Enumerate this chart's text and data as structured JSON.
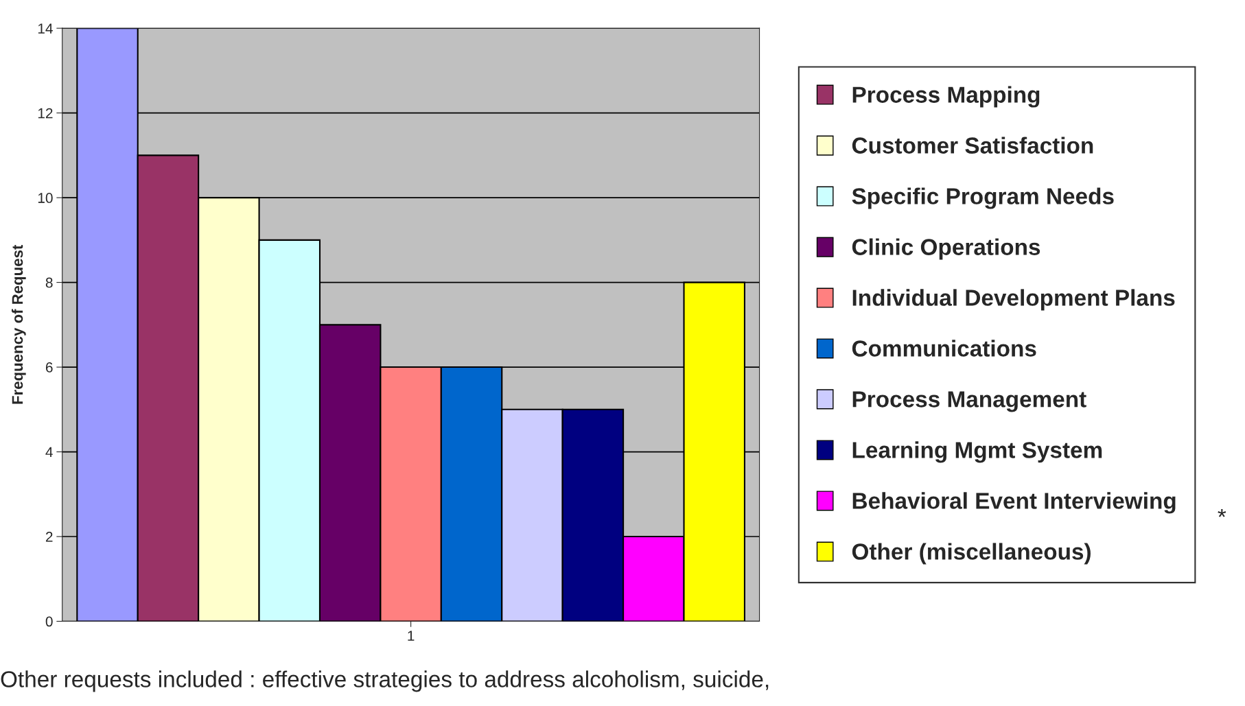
{
  "chart_data": {
    "type": "bar",
    "ylabel": "Frequency of Request",
    "categories": [
      "1"
    ],
    "series": [
      {
        "color": "#9999ff",
        "values": [
          14
        ]
      },
      {
        "name": "Process Mapping",
        "color": "#993366",
        "values": [
          11
        ]
      },
      {
        "name": "Customer Satisfaction",
        "color": "#ffffcc",
        "values": [
          10
        ]
      },
      {
        "name": "Specific Program Needs",
        "color": "#ccffff",
        "values": [
          9
        ]
      },
      {
        "name": "Clinic Operations",
        "color": "#660066",
        "values": [
          7
        ]
      },
      {
        "name": "Individual Development Plans",
        "color": "#ff8080",
        "values": [
          6
        ]
      },
      {
        "name": "Communications",
        "color": "#0066cc",
        "values": [
          6
        ]
      },
      {
        "name": "Process Management",
        "color": "#ccccff",
        "values": [
          5
        ]
      },
      {
        "name": "Learning Mgmt System",
        "color": "#000080",
        "values": [
          5
        ]
      },
      {
        "name": "Behavioral Event Interviewing",
        "color": "#ff00ff",
        "values": [
          2
        ]
      },
      {
        "name": "Other (miscellaneous)",
        "color": "#ffff00",
        "values": [
          8
        ]
      }
    ],
    "ylim": [
      0,
      14
    ],
    "yticks": [
      0,
      2,
      4,
      6,
      8,
      10,
      12,
      14
    ],
    "grid": "y",
    "legend": "right",
    "annotations": [
      "*",
      "Other requests included : effective strategies to address alcoholism, suicide,"
    ]
  }
}
